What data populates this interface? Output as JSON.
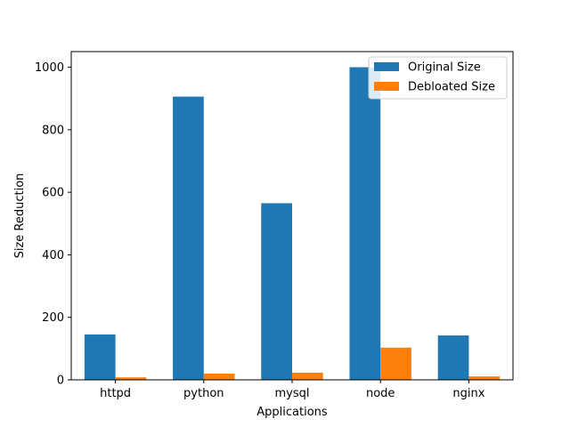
{
  "chart_data": {
    "type": "bar",
    "title": "",
    "xlabel": "Applications",
    "ylabel": "Size Reduction",
    "categories": [
      "httpd",
      "python",
      "mysql",
      "node",
      "nginx"
    ],
    "series": [
      {
        "name": "Original Size",
        "color": "#1f77b4",
        "values": [
          145,
          906,
          565,
          1000,
          142
        ]
      },
      {
        "name": "Debloated Size",
        "color": "#ff7f0e",
        "values": [
          8,
          20,
          23,
          103,
          11
        ]
      }
    ],
    "ylim": [
      0,
      1050
    ],
    "yticks": [
      0,
      200,
      400,
      600,
      800,
      1000
    ],
    "grid": false,
    "legend_position": "top-right"
  }
}
